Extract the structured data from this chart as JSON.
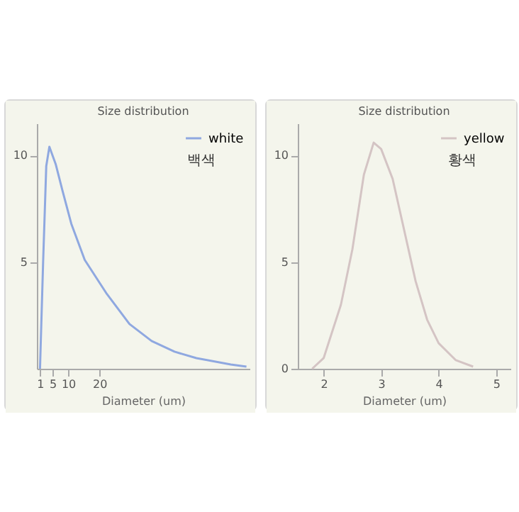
{
  "chart_data": [
    {
      "type": "line",
      "title": "Size distribution",
      "xlabel": "Diameter (um)",
      "legend": "top right",
      "annotations": [
        "백색"
      ],
      "xlim": [
        0,
        68
      ],
      "xticks": [
        1,
        5,
        10,
        20
      ],
      "ylim": [
        0,
        11.5
      ],
      "yticks": [
        5,
        10
      ],
      "grid": false,
      "series": [
        {
          "name": "white",
          "color": "#8fa8e0",
          "x": [
            1,
            2,
            3,
            4,
            6,
            8.1,
            11,
            15.3,
            22.4,
            29.6,
            36.7,
            44,
            51,
            62,
            67
          ],
          "values": [
            0,
            5,
            9.5,
            10.4,
            9.6,
            8.4,
            6.8,
            5.1,
            3.5,
            2.1,
            1.3,
            0.8,
            0.5,
            0.2,
            0.1
          ]
        }
      ]
    },
    {
      "type": "line",
      "title": "Size distribution",
      "xlabel": "Diameter (um)",
      "legend": "top right",
      "annotations": [
        "황색"
      ],
      "xlim": [
        1.55,
        5.25
      ],
      "xticks": [
        2,
        3,
        4,
        5
      ],
      "ylim": [
        0,
        11.5
      ],
      "yticks": [
        0,
        5,
        10
      ],
      "grid": false,
      "series": [
        {
          "name": "yellow",
          "color": "#d4c4c4",
          "x": [
            1.8,
            2,
            2.3,
            2.5,
            2.7,
            2.87,
            3,
            3.2,
            3.4,
            3.6,
            3.8,
            4,
            4.3,
            4.6
          ],
          "values": [
            0,
            0.5,
            3,
            5.6,
            9.1,
            10.6,
            10.3,
            8.9,
            6.5,
            4.1,
            2.3,
            1.2,
            0.4,
            0.1
          ]
        }
      ]
    }
  ]
}
